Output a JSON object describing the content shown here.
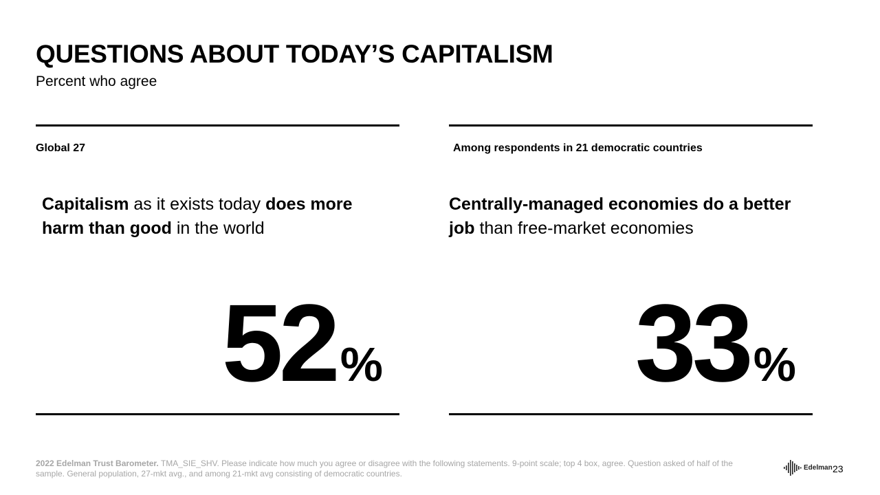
{
  "title": "QUESTIONS ABOUT TODAY’S CAPITALISM",
  "subtitle": "Percent who agree",
  "panels": [
    {
      "label": "Global 27",
      "statement": [
        {
          "text": "Capitalism",
          "bold": true
        },
        {
          "text": " as it exists today ",
          "bold": false
        },
        {
          "text": "does more harm than good",
          "bold": true
        },
        {
          "text": " in the world",
          "bold": false
        }
      ],
      "value": "52",
      "unit": "%"
    },
    {
      "label": "Among respondents in 21 democratic countries",
      "statement": [
        {
          "text": "Centrally-managed economies do a better job",
          "bold": true
        },
        {
          "text": " than free-market economies",
          "bold": false
        }
      ],
      "value": "33",
      "unit": "%"
    }
  ],
  "footnote": {
    "source": "2022 Edelman Trust Barometer.",
    "text": " TMA_SIE_SHV. Please indicate how much you agree or disagree with the following statements. 9-point scale; top 4 box, agree. Question asked of half of the sample. General population, 27-mkt avg., and among 21-mkt avg consisting of democratic countries."
  },
  "logo": {
    "text": "Edelman",
    "icon": "edelman-logo-icon"
  },
  "page_number": "23"
}
